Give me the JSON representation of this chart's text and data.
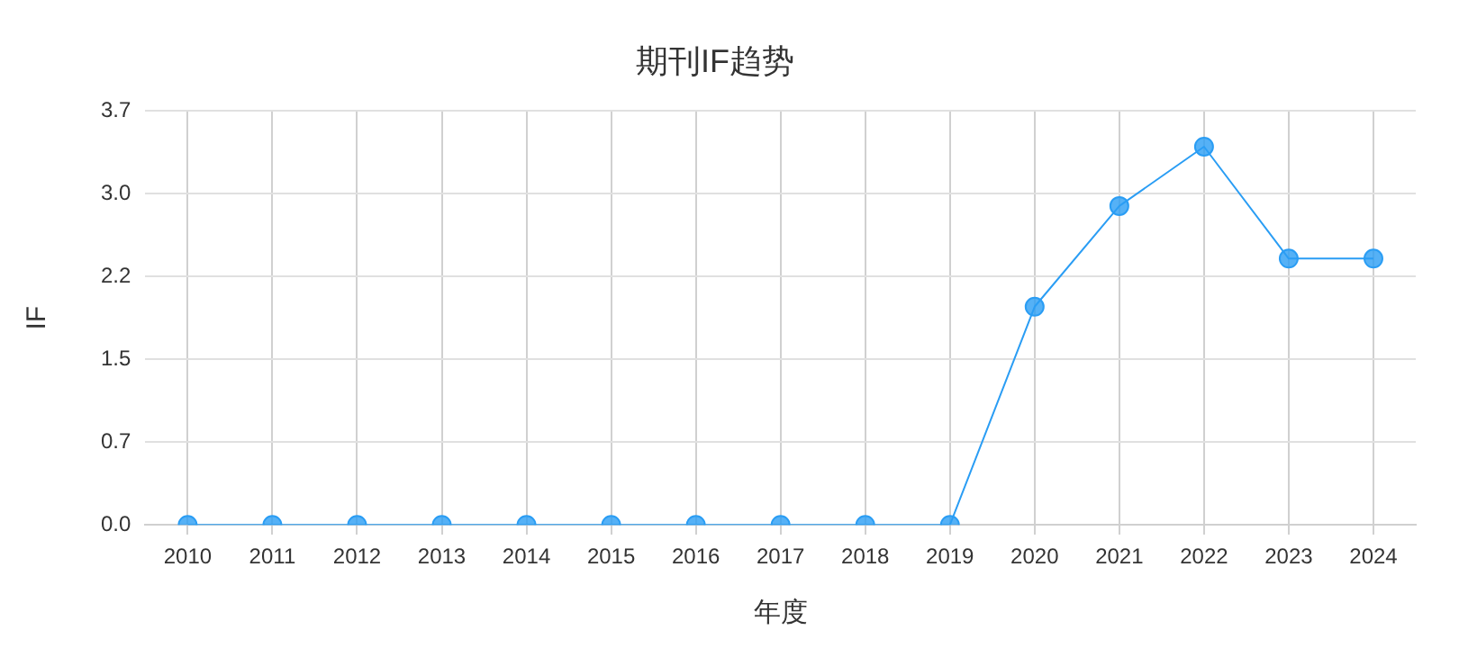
{
  "chart_data": {
    "type": "line",
    "title": "期刊IF趋势",
    "xlabel": "年度",
    "ylabel": "IF",
    "categories": [
      "2010",
      "2011",
      "2012",
      "2013",
      "2014",
      "2015",
      "2016",
      "2017",
      "2018",
      "2019",
      "2020",
      "2021",
      "2022",
      "2023",
      "2024"
    ],
    "series": [
      {
        "color": "#2a9df4",
        "values": [
          0,
          0,
          0,
          0,
          0,
          0,
          0,
          0,
          0,
          0,
          1.95,
          2.85,
          3.38,
          2.38,
          2.38
        ]
      }
    ],
    "ylim": [
      0,
      3.7
    ],
    "yticks": [
      {
        "value": 0,
        "label": "0.0"
      },
      {
        "value": 0.74,
        "label": "0.7"
      },
      {
        "value": 1.48,
        "label": "1.5"
      },
      {
        "value": 2.22,
        "label": "2.2"
      },
      {
        "value": 2.96,
        "label": "3.0"
      },
      {
        "value": 3.7,
        "label": "3.7"
      }
    ],
    "grid": true,
    "marker": "circle",
    "line_style": "solid",
    "legend": false
  }
}
